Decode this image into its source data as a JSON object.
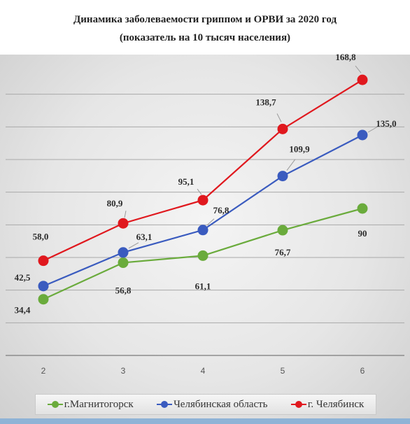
{
  "chart_data": {
    "type": "line",
    "title": "Динамика заболеваемости гриппом и ОРВИ за 2020 год",
    "subtitle": "(показатель на 10 тысяч населения)",
    "categories": [
      "2",
      "3",
      "4",
      "5",
      "6"
    ],
    "ylim": [
      0,
      180
    ],
    "grid": true,
    "legend": "bottom",
    "series": [
      {
        "name": "г.Магнитогорск",
        "color": "#6aab3c",
        "values": [
          34.4,
          56.8,
          61.1,
          76.7,
          90
        ],
        "labels": [
          "34,4",
          "56,8",
          "61,1",
          "76,7",
          "90"
        ]
      },
      {
        "name": "Челябинская область",
        "color": "#3a5bbf",
        "values": [
          42.5,
          63.1,
          76.8,
          109.9,
          135.0
        ],
        "labels": [
          "42,5",
          "63,1",
          "76,8",
          "109,9",
          "135,0"
        ]
      },
      {
        "name": "г. Челябинск",
        "color": "#e0181e",
        "values": [
          58.0,
          80.9,
          95.1,
          138.7,
          168.8
        ],
        "labels": [
          "58,0",
          "80,9",
          "95,1",
          "138,7",
          "168,8"
        ]
      }
    ]
  }
}
